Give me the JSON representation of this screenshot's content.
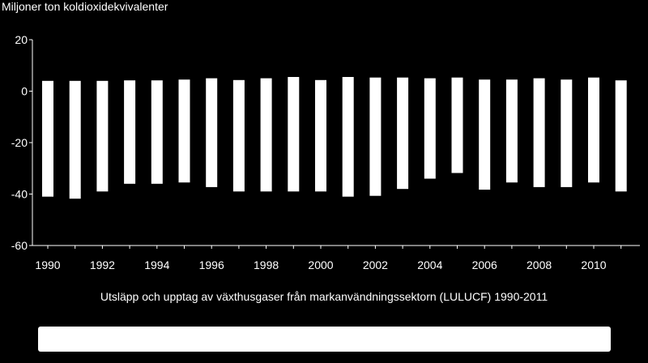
{
  "chart_data": {
    "type": "bar",
    "ylabel": "Miljoner ton koldioxidekvivalenter",
    "xlabel": "",
    "title": "Utsläpp och upptag av växthusgaser från markanvändningssektorn (LULUCF) 1990-2011",
    "categories": [
      "1990",
      "1991",
      "1992",
      "1993",
      "1994",
      "1995",
      "1996",
      "1997",
      "1998",
      "1999",
      "2000",
      "2001",
      "2002",
      "2003",
      "2004",
      "2005",
      "2006",
      "2007",
      "2008",
      "2009",
      "2010",
      "2011"
    ],
    "x_tick_labels": [
      "1990",
      "1992",
      "1994",
      "1996",
      "1998",
      "2000",
      "2002",
      "2004",
      "2006",
      "2008",
      "2010"
    ],
    "y_ticks": [
      20,
      0,
      -20,
      -40,
      -60
    ],
    "ylim": [
      -60,
      20
    ],
    "grid": false,
    "legend": "none",
    "series": [
      {
        "values": [
          4.0,
          4.0,
          4.0,
          4.2,
          4.2,
          4.5,
          5.0,
          4.3,
          5.0,
          5.5,
          4.3,
          5.5,
          5.3,
          5.3,
          5.0,
          5.3,
          4.5,
          4.5,
          5.0,
          4.5,
          5.3,
          4.2
        ]
      },
      {
        "values": [
          -41.0,
          -41.8,
          -39.0,
          -36.0,
          -36.0,
          -35.5,
          -37.3,
          -39.0,
          -39.0,
          -39.0,
          -39.0,
          -41.0,
          -40.7,
          -38.0,
          -34.0,
          -31.8,
          -38.3,
          -35.5,
          -37.3,
          -37.3,
          -35.5,
          -39.0
        ]
      }
    ],
    "bar_color": "#ffffff",
    "background": "#000000"
  }
}
